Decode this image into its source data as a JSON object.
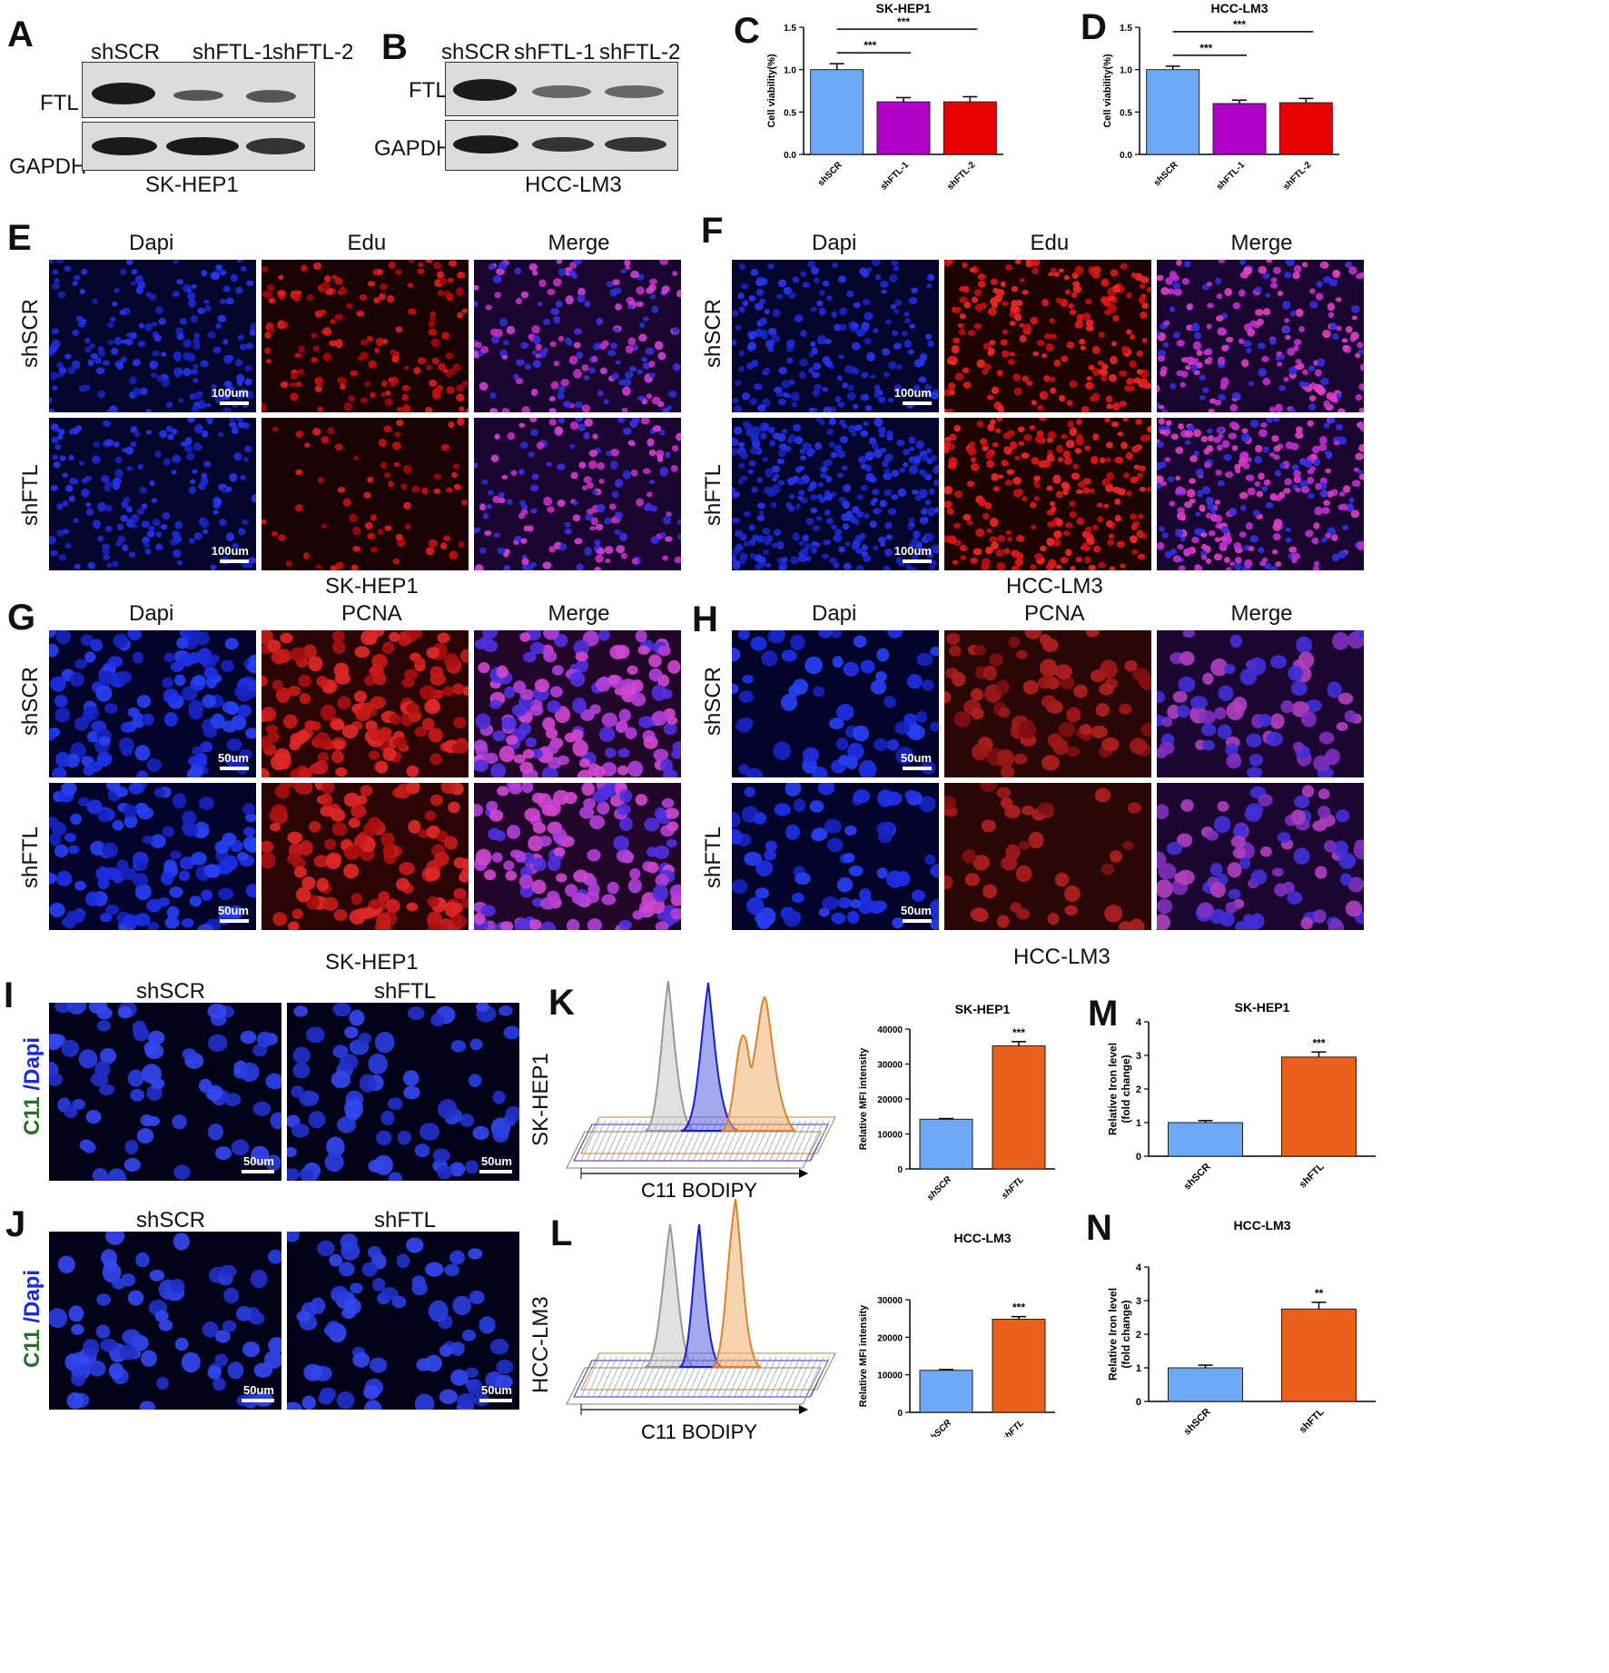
{
  "panels": {
    "A": "A",
    "B": "B",
    "C": "C",
    "D": "D",
    "E": "E",
    "F": "F",
    "G": "G",
    "H": "H",
    "I": "I",
    "J": "J",
    "K": "K",
    "L": "L",
    "M": "M",
    "N": "N"
  },
  "westernA": {
    "lanes": [
      "shSCR",
      "shFTL-1",
      "shFTL-2"
    ],
    "rows": [
      "FTL",
      "GAPDH"
    ],
    "cell": "SK-HEP1"
  },
  "westernB": {
    "lanes": [
      "shSCR",
      "shFTL-1",
      "shFTL-2"
    ],
    "rows": [
      "FTL",
      "GAPDH"
    ],
    "cell": "HCC-LM3"
  },
  "if_edu": {
    "cols": [
      "Dapi",
      "Edu",
      "Merge"
    ],
    "rows": [
      "shSCR",
      "shFTL"
    ],
    "scale": "100um",
    "cellE": "SK-HEP1",
    "cellF": "HCC-LM3"
  },
  "if_pcna": {
    "cols": [
      "Dapi",
      "PCNA",
      "Merge"
    ],
    "rows": [
      "shSCR",
      "shFTL"
    ],
    "scale": "50um",
    "cellG": "SK-HEP1",
    "cellH": "HCC-LM3"
  },
  "c11": {
    "cols": [
      "shSCR",
      "shFTL"
    ],
    "label_c11": "C11",
    "label_dapi": "/Dapi",
    "scale": "50um"
  },
  "flow": {
    "xlabel": "C11 BODIPY",
    "cellK": "SK-HEP1",
    "cellL": "HCC-LM3"
  },
  "chart_data": [
    {
      "id": "C",
      "type": "bar",
      "title": "SK-HEP1",
      "ylabel": "Cell viability(%)",
      "categories": [
        "shSCR",
        "shFTL-1",
        "shFTL-2"
      ],
      "values": [
        1.0,
        0.62,
        0.62
      ],
      "errors": [
        0.07,
        0.05,
        0.06
      ],
      "colors": [
        "#6fa8f5",
        "#b000c8",
        "#e80000"
      ],
      "ylim": [
        0,
        1.5
      ],
      "yticks": [
        "0.0",
        "0.5",
        "1.0",
        "1.5"
      ],
      "significance": [
        {
          "from": 0,
          "to": 1,
          "label": "***"
        },
        {
          "from": 0,
          "to": 2,
          "label": "***"
        }
      ]
    },
    {
      "id": "D",
      "type": "bar",
      "title": "HCC-LM3",
      "ylabel": "Cell viability(%)",
      "categories": [
        "shSCR",
        "shFTL-1",
        "shFTL-2"
      ],
      "values": [
        1.0,
        0.6,
        0.61
      ],
      "errors": [
        0.04,
        0.04,
        0.05
      ],
      "colors": [
        "#6fa8f5",
        "#b000c8",
        "#e80000"
      ],
      "ylim": [
        0,
        1.5
      ],
      "yticks": [
        "0.0",
        "0.5",
        "1.0",
        "1.5"
      ],
      "significance": [
        {
          "from": 0,
          "to": 1,
          "label": "***"
        },
        {
          "from": 0,
          "to": 2,
          "label": "***"
        }
      ]
    },
    {
      "id": "K-bar",
      "type": "bar",
      "title": "SK-HEP1",
      "ylabel": "Relative MFI intensity",
      "categories": [
        "shSCR",
        "shFTL"
      ],
      "values": [
        14200,
        35200
      ],
      "errors": [
        200,
        1200
      ],
      "colors": [
        "#6fa8f5",
        "#e8601c"
      ],
      "ylim": [
        0,
        40000
      ],
      "yticks": [
        "0",
        "10000",
        "20000",
        "30000",
        "40000"
      ],
      "significance": [
        {
          "bar": 1,
          "label": "***"
        }
      ]
    },
    {
      "id": "L-bar",
      "type": "bar",
      "title": "HCC-LM3",
      "ylabel": "Relative MFI intensity",
      "categories": [
        "shSCR",
        "shFTL"
      ],
      "values": [
        11200,
        24800
      ],
      "errors": [
        200,
        700
      ],
      "colors": [
        "#6fa8f5",
        "#e8601c"
      ],
      "ylim": [
        0,
        30000
      ],
      "yticks": [
        "0",
        "10000",
        "20000",
        "30000"
      ],
      "significance": [
        {
          "bar": 1,
          "label": "***"
        }
      ]
    },
    {
      "id": "M",
      "type": "bar",
      "title": "SK-HEP1",
      "ylabel": "Relative Iron level (fold change)",
      "categories": [
        "shSCR",
        "shFTL"
      ],
      "values": [
        1.0,
        2.95
      ],
      "errors": [
        0.06,
        0.15
      ],
      "colors": [
        "#6fa8f5",
        "#e8601c"
      ],
      "ylim": [
        0,
        4
      ],
      "yticks": [
        "0",
        "1",
        "2",
        "3",
        "4"
      ],
      "significance": [
        {
          "bar": 1,
          "label": "***"
        }
      ]
    },
    {
      "id": "N",
      "type": "bar",
      "title": "HCC-LM3",
      "ylabel": "Relative Iron level (fold change)",
      "categories": [
        "shSCR",
        "shFTL"
      ],
      "values": [
        1.0,
        2.75
      ],
      "errors": [
        0.08,
        0.2
      ],
      "colors": [
        "#6fa8f5",
        "#e8601c"
      ],
      "ylim": [
        0,
        4
      ],
      "yticks": [
        "0",
        "1",
        "2",
        "3",
        "4"
      ],
      "significance": [
        {
          "bar": 1,
          "label": "**"
        }
      ]
    }
  ]
}
